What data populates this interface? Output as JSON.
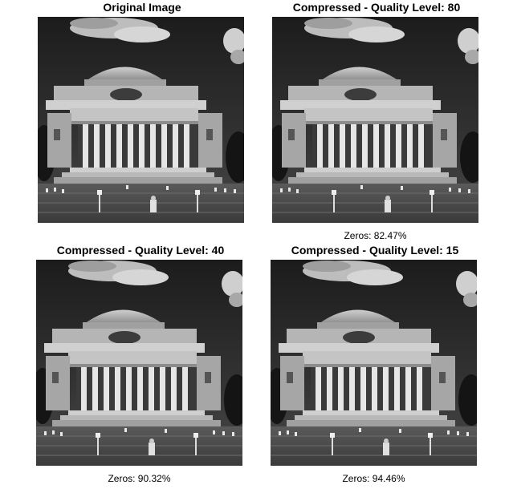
{
  "panels": [
    {
      "title": "Original Image",
      "caption": ""
    },
    {
      "title": "Compressed - Quality Level: 80",
      "caption": "Zeros: 82.47%"
    },
    {
      "title": "Compressed - Quality Level: 40",
      "caption": "Zeros: 90.32%"
    },
    {
      "title": "Compressed - Quality Level: 15",
      "caption": "Zeros: 94.46%"
    }
  ],
  "image_subject": "grayscale-photo-domed-library-with-columns"
}
